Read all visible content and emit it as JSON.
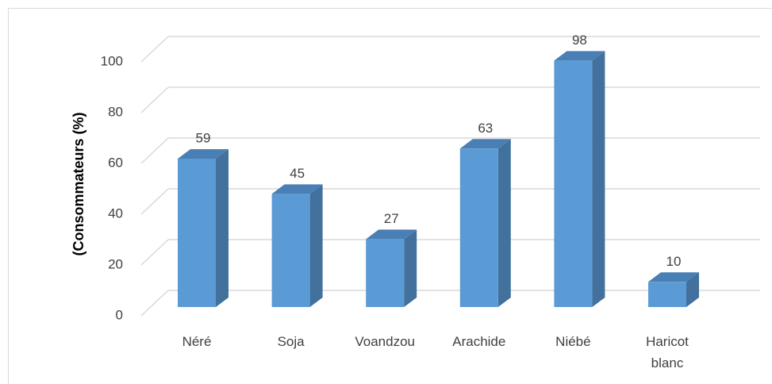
{
  "chart_data": {
    "type": "bar3d",
    "y_label": "(Consommateurs (%)",
    "categories": [
      "Néré",
      "Soja",
      "Voandzou",
      "Arachide",
      "Niébé",
      "Haricot blanc"
    ],
    "values": [
      59,
      45,
      27,
      63,
      98,
      10
    ],
    "color": "#5b9bd5",
    "ylim": [
      0,
      100
    ],
    "yticks": [
      0,
      20,
      40,
      60,
      80,
      100
    ],
    "grid": true
  }
}
